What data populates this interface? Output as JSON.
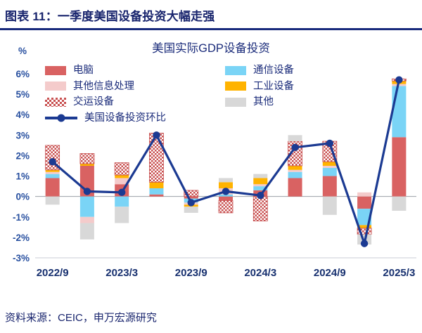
{
  "header": {
    "title": "图表 11：一季度美国设备投资大幅走强"
  },
  "footer": {
    "source": "资料来源：CEIC，申万宏源研究"
  },
  "chart_data": {
    "type": "bar",
    "stacked": true,
    "title": "美国实际GDP设备投资",
    "ylabel": "%",
    "ylim": [
      -3,
      6
    ],
    "ytick_step": 1,
    "ytick_suffix": "%",
    "grid": false,
    "legend_position": "top-inside",
    "categories": [
      "2022/9",
      "2022/12",
      "2023/3",
      "2023/6",
      "2023/9",
      "2023/12",
      "2024/3",
      "2024/6",
      "2024/9",
      "2024/12",
      "2025/3"
    ],
    "x_tick_labels": [
      "2022/9",
      "2023/3",
      "2023/9",
      "2024/3",
      "2024/9",
      "2025/3"
    ],
    "x_tick_indices": [
      0,
      2,
      4,
      6,
      8,
      10
    ],
    "series": [
      {
        "name": "电脑",
        "color": "#d96262",
        "values": [
          0.9,
          1.5,
          0.6,
          0.1,
          -0.1,
          -0.2,
          0.3,
          0.9,
          1.0,
          -0.6,
          2.9
        ]
      },
      {
        "name": "通信设备",
        "color": "#7ad4f6",
        "values": [
          0.2,
          -1.0,
          -0.5,
          0.3,
          -0.2,
          0.1,
          0.2,
          0.3,
          0.4,
          -0.8,
          2.5
        ]
      },
      {
        "name": "其他信息处理",
        "color": "#f4cbcb",
        "values": [
          0.1,
          -0.3,
          0.3,
          0.0,
          -0.1,
          0.3,
          0.1,
          0.1,
          0.1,
          0.2,
          0.1
        ]
      },
      {
        "name": "工业设备",
        "color": "#ffb300",
        "values": [
          0.1,
          0.1,
          0.15,
          0.3,
          -0.1,
          0.3,
          0.3,
          0.2,
          0.2,
          -0.15,
          0.15
        ]
      },
      {
        "name": "交运设备",
        "color": "#c85050",
        "pattern": "checker",
        "values": [
          1.2,
          0.5,
          0.6,
          2.4,
          0.3,
          -0.6,
          -1.2,
          1.2,
          1.0,
          -0.3,
          0.1
        ]
      },
      {
        "name": "其他",
        "color": "#d8d8d8",
        "values": [
          -0.4,
          -0.8,
          -0.8,
          0.0,
          -0.3,
          0.2,
          0.2,
          0.3,
          -0.9,
          -0.5,
          -0.7
        ]
      }
    ],
    "line_series": {
      "name": "美国设备投资环比",
      "color": "#1b3a92",
      "values": [
        1.7,
        0.25,
        0.2,
        3.0,
        -0.3,
        0.25,
        0.05,
        2.4,
        2.6,
        -2.3,
        5.7
      ]
    },
    "colors": {
      "axis_tick": "#2850a0",
      "axis_label": "#17306f",
      "zero_line": "#9aa0a6",
      "bottom_line": "#c9cdd4"
    }
  }
}
